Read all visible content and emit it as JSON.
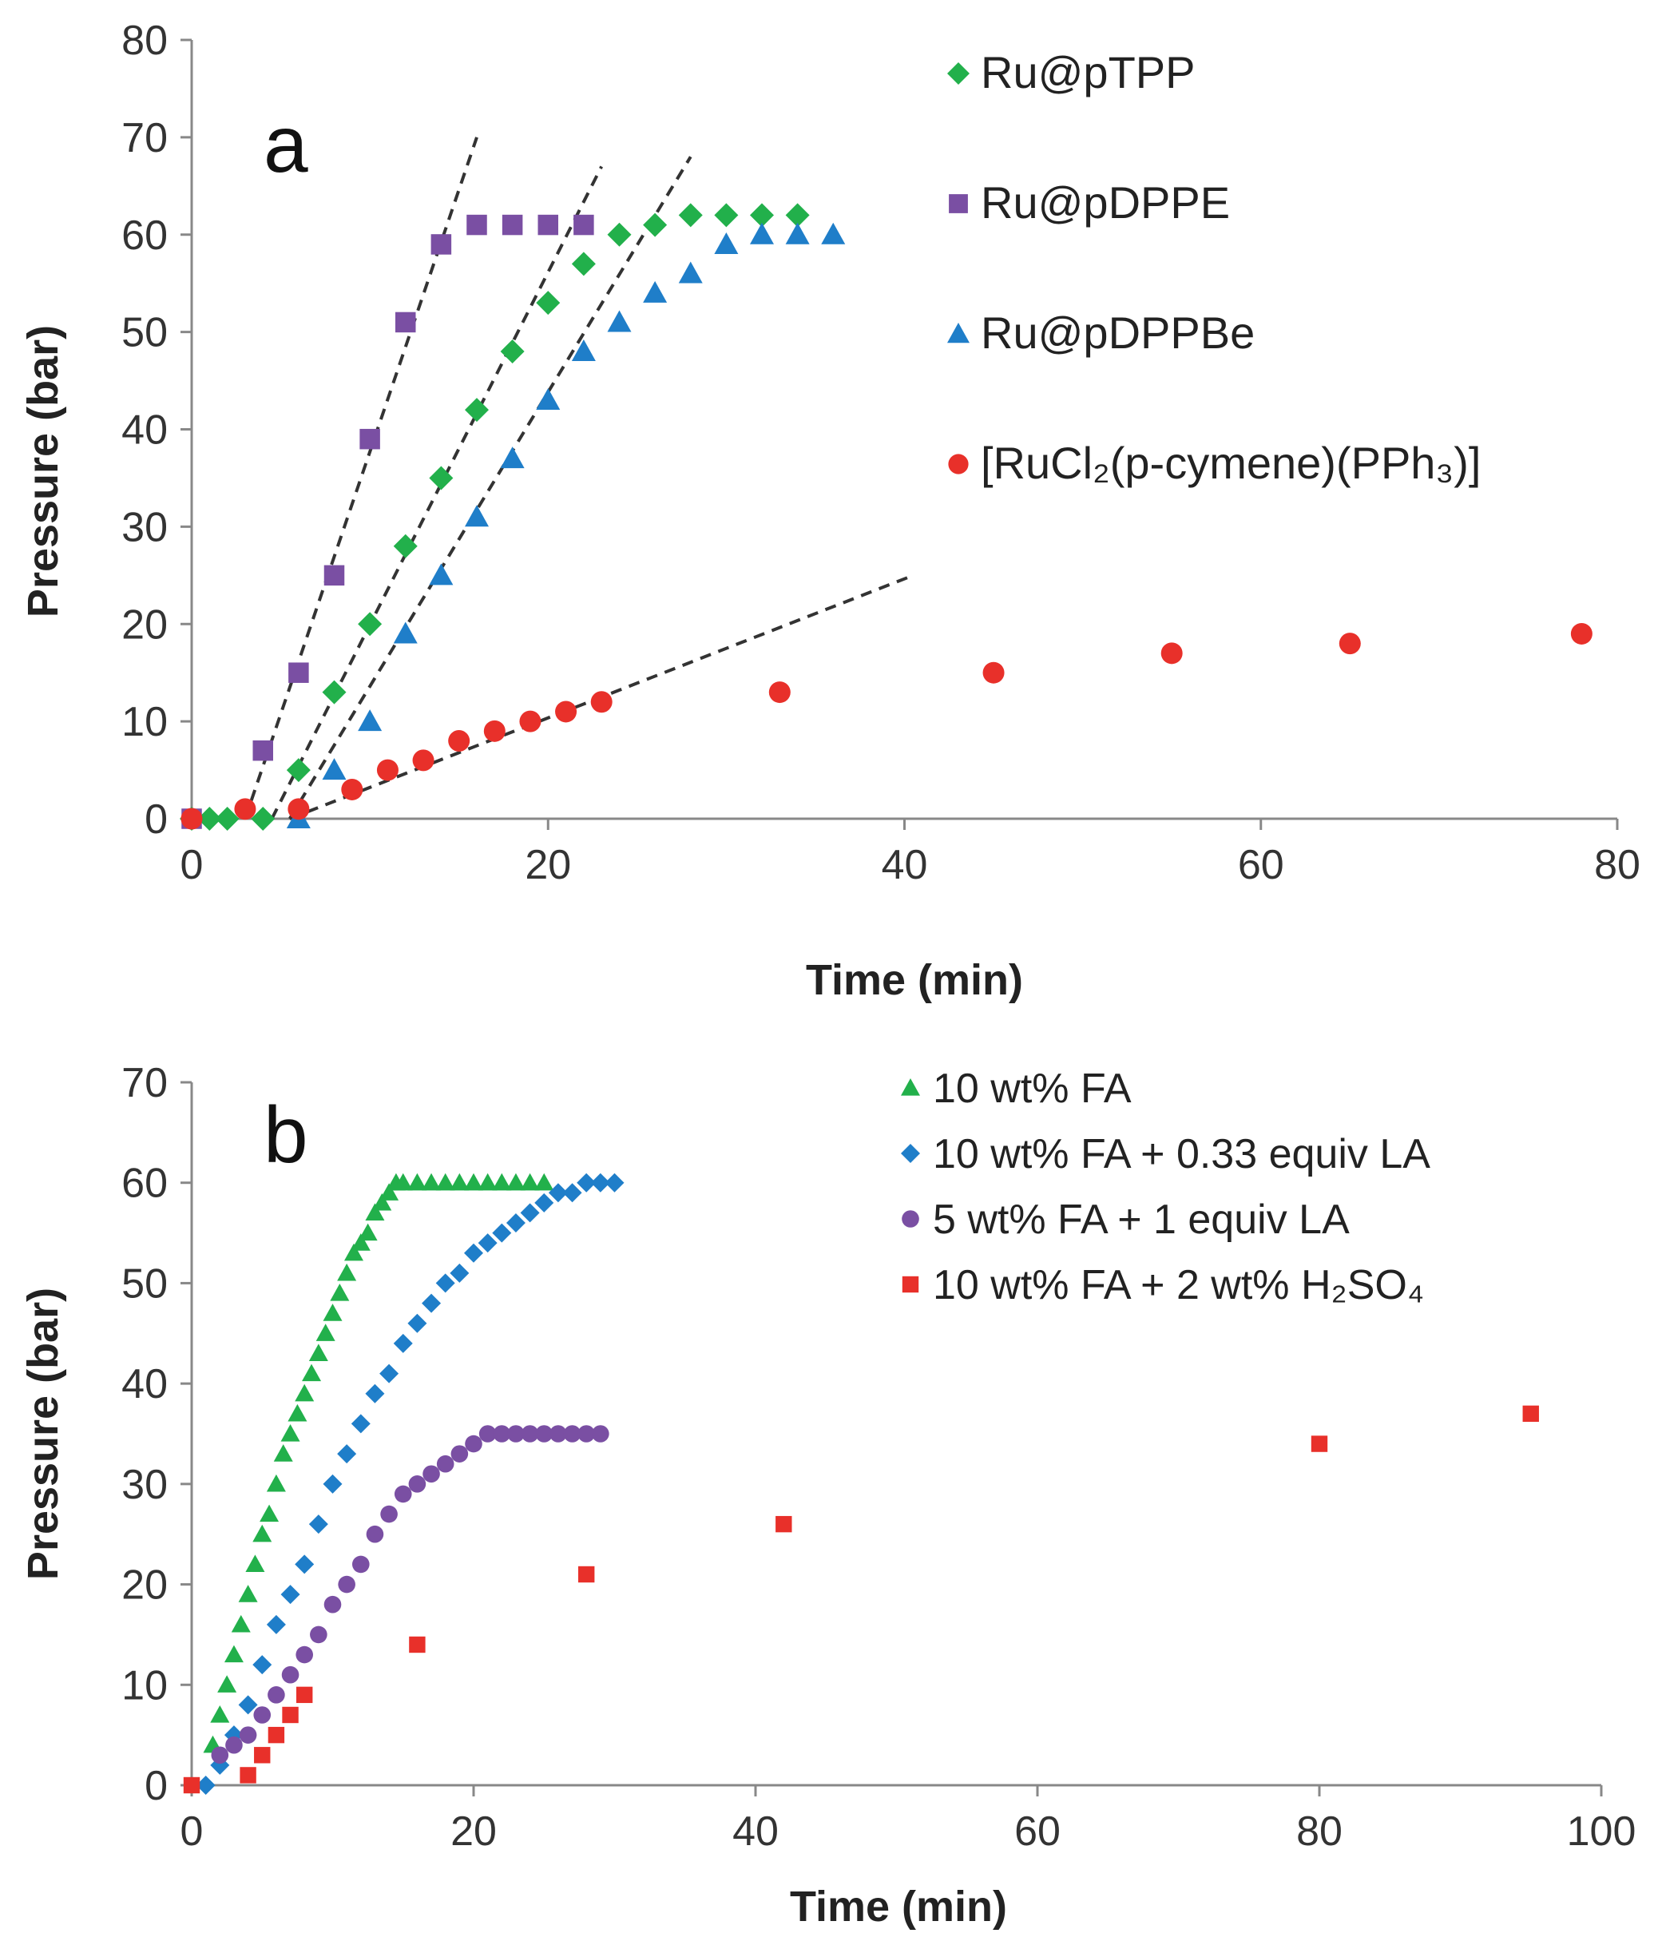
{
  "chart_data": [
    {
      "panel": "a",
      "type": "scatter",
      "xlabel": "Time (min)",
      "ylabel": "Pressure (bar)",
      "xlim": [
        0,
        80
      ],
      "ylim": [
        0,
        80
      ],
      "xticks": [
        0,
        20,
        40,
        60,
        80
      ],
      "yticks": [
        0,
        10,
        20,
        30,
        40,
        50,
        60,
        70,
        80
      ],
      "legend_position": "top-right",
      "series": [
        {
          "name": "Ru@pTPP",
          "color": "#22b04b",
          "marker": "diamond",
          "x": [
            0,
            1,
            2,
            4,
            6,
            8,
            10,
            12,
            14,
            16,
            18,
            20,
            22,
            24,
            26,
            28,
            30,
            32,
            34
          ],
          "y": [
            0,
            0,
            0,
            0,
            5,
            13,
            20,
            28,
            35,
            42,
            48,
            53,
            57,
            60,
            61,
            62,
            62,
            62,
            62
          ]
        },
        {
          "name": "Ru@pDPPE",
          "color": "#7a4fa3",
          "marker": "square",
          "x": [
            0,
            4,
            6,
            8,
            10,
            12,
            14,
            16,
            18,
            20,
            22
          ],
          "y": [
            0,
            7,
            15,
            25,
            39,
            51,
            59,
            61,
            61,
            61,
            61
          ]
        },
        {
          "name": "Ru@pDPPBe",
          "color": "#1f7ec9",
          "marker": "triangle",
          "x": [
            6,
            8,
            10,
            12,
            14,
            16,
            18,
            20,
            22,
            24,
            26,
            28,
            30,
            32,
            34,
            36
          ],
          "y": [
            0,
            5,
            10,
            19,
            25,
            31,
            37,
            43,
            48,
            51,
            54,
            56,
            59,
            60,
            60,
            60
          ]
        },
        {
          "name": "[RuCl₂(p-cymene)(PPh₃)]",
          "color": "#e8302a",
          "marker": "circle",
          "x": [
            0,
            3,
            6,
            9,
            11,
            13,
            15,
            17,
            19,
            21,
            23,
            33,
            45,
            55,
            65,
            78
          ],
          "y": [
            0,
            1,
            1,
            3,
            5,
            6,
            8,
            9,
            10,
            11,
            12,
            13,
            15,
            17,
            18,
            19
          ]
        }
      ],
      "fit_lines": [
        {
          "x": [
            3,
            16
          ],
          "y": [
            0,
            70
          ]
        },
        {
          "x": [
            4.5,
            23
          ],
          "y": [
            0,
            67
          ]
        },
        {
          "x": [
            5.5,
            28
          ],
          "y": [
            0,
            68
          ]
        },
        {
          "x": [
            5.5,
            40.5
          ],
          "y": [
            0,
            25
          ]
        }
      ]
    },
    {
      "panel": "b",
      "type": "scatter",
      "xlabel": "Time (min)",
      "ylabel": "Pressure (bar)",
      "xlim": [
        0,
        100
      ],
      "ylim": [
        0,
        70
      ],
      "xticks": [
        0,
        20,
        40,
        60,
        80,
        100
      ],
      "yticks": [
        0,
        10,
        20,
        30,
        40,
        50,
        60,
        70
      ],
      "legend_position": "top-right",
      "series": [
        {
          "name": "10 wt% FA",
          "color": "#22b04b",
          "marker": "triangle",
          "x": [
            1.5,
            2,
            2.5,
            3,
            3.5,
            4,
            4.5,
            5,
            5.5,
            6,
            6.5,
            7,
            7.5,
            8,
            8.5,
            9,
            9.5,
            10,
            10.5,
            11,
            11.5,
            12,
            12.5,
            13,
            13.5,
            14,
            14.5,
            15,
            16,
            17,
            18,
            19,
            20,
            21,
            22,
            23,
            24,
            25
          ],
          "y": [
            4,
            7,
            10,
            13,
            16,
            19,
            22,
            25,
            27,
            30,
            33,
            35,
            37,
            39,
            41,
            43,
            45,
            47,
            49,
            51,
            53,
            54,
            55,
            57,
            58,
            59,
            60,
            60,
            60,
            60,
            60,
            60,
            60,
            60,
            60,
            60,
            60,
            60
          ]
        },
        {
          "name": "10 wt% FA + 0.33 equiv LA",
          "color": "#1f7ec9",
          "marker": "diamond",
          "x": [
            1,
            2,
            3,
            4,
            5,
            6,
            7,
            8,
            9,
            10,
            11,
            12,
            13,
            14,
            15,
            16,
            17,
            18,
            19,
            20,
            21,
            22,
            23,
            24,
            25,
            26,
            27,
            28,
            29,
            30
          ],
          "y": [
            0,
            2,
            5,
            8,
            12,
            16,
            19,
            22,
            26,
            30,
            33,
            36,
            39,
            41,
            44,
            46,
            48,
            50,
            51,
            53,
            54,
            55,
            56,
            57,
            58,
            59,
            59,
            60,
            60,
            60
          ]
        },
        {
          "name": "5 wt% FA + 1 equiv LA",
          "color": "#7a4fa3",
          "marker": "circle",
          "x": [
            2,
            3,
            4,
            5,
            6,
            7,
            8,
            9,
            10,
            11,
            12,
            13,
            14,
            15,
            16,
            17,
            18,
            19,
            20,
            21,
            22,
            23,
            24,
            25,
            26,
            27,
            28,
            29
          ],
          "y": [
            3,
            4,
            5,
            7,
            9,
            11,
            13,
            15,
            18,
            20,
            22,
            25,
            27,
            29,
            30,
            31,
            32,
            33,
            34,
            35,
            35,
            35,
            35,
            35,
            35,
            35,
            35,
            35
          ]
        },
        {
          "name": "10 wt% FA + 2 wt% H₂SO₄",
          "color": "#e8302a",
          "marker": "square",
          "x": [
            0,
            4,
            5,
            6,
            7,
            8,
            16,
            28,
            42,
            80,
            95
          ],
          "y": [
            0,
            1,
            3,
            5,
            7,
            9,
            14,
            21,
            26,
            34,
            37
          ]
        }
      ]
    }
  ],
  "panels": {
    "a": {
      "label": "a",
      "xlabel": "Time (min)",
      "ylabel": "Pressure (bar)"
    },
    "b": {
      "label": "b",
      "xlabel": "Time (min)",
      "ylabel": "Pressure (bar)"
    }
  }
}
